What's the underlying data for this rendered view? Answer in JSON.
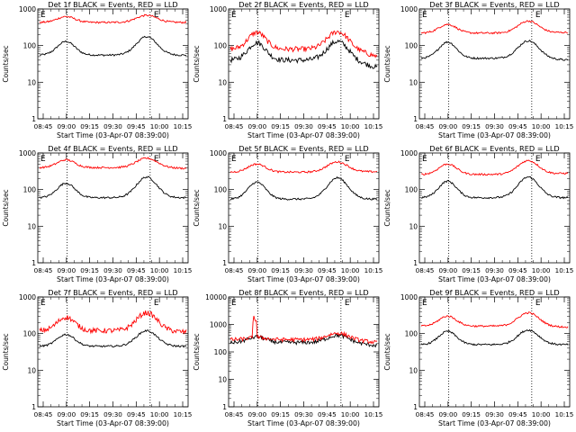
{
  "figure": {
    "xlabel": "Start Time (03-Apr-07 08:39:00)",
    "ylabel": "Counts/sec",
    "x_ticks": [
      "08:45",
      "09:00",
      "09:15",
      "09:30",
      "09:45",
      "10:00",
      "10:15"
    ],
    "marker_label": "E",
    "colors": {
      "events": "#000000",
      "lld": "#ff0000",
      "axis": "#000000"
    }
  },
  "chart_data": [
    {
      "type": "line",
      "title": "Det 1f BLACK = Events, RED = LLD",
      "ylim": [
        1,
        1000
      ],
      "yscale": "log",
      "yticks": [
        "1",
        "10",
        "100",
        "1000"
      ],
      "series": [
        {
          "name": "BLACK = Events",
          "base": 55,
          "peak1": 130,
          "peak2": 175
        },
        {
          "name": "RED = LLD",
          "base": 430,
          "peak1": 620,
          "peak2": 670
        }
      ]
    },
    {
      "type": "line",
      "title": "Det 2f BLACK = Events, RED = LLD",
      "ylim": [
        1,
        1000
      ],
      "yscale": "log",
      "yticks": [
        "1",
        "10",
        "100",
        "1000"
      ],
      "series": [
        {
          "name": "BLACK = Events",
          "base": 40,
          "peak1": 120,
          "peak2": 130,
          "end": 25
        },
        {
          "name": "RED = LLD",
          "base": 80,
          "peak1": 230,
          "peak2": 240,
          "end": 50
        }
      ]
    },
    {
      "type": "line",
      "title": "Det 3f BLACK = Events, RED = LLD",
      "ylim": [
        1,
        1000
      ],
      "yscale": "log",
      "yticks": [
        "1",
        "10",
        "100",
        "1000"
      ],
      "series": [
        {
          "name": "BLACK = Events",
          "base": 45,
          "peak1": 125,
          "peak2": 135,
          "end": 40
        },
        {
          "name": "RED = LLD",
          "base": 220,
          "peak1": 380,
          "peak2": 470,
          "end": 230
        }
      ]
    },
    {
      "type": "line",
      "title": "Det 4f BLACK = Events, RED = LLD",
      "ylim": [
        1,
        1000
      ],
      "yscale": "log",
      "yticks": [
        "1",
        "10",
        "100",
        "1000"
      ],
      "series": [
        {
          "name": "BLACK = Events",
          "base": 60,
          "peak1": 150,
          "peak2": 220,
          "end": 60
        },
        {
          "name": "RED = LLD",
          "base": 400,
          "peak1": 650,
          "peak2": 720,
          "end": 380
        }
      ]
    },
    {
      "type": "line",
      "title": "Det 5f BLACK = Events, RED = LLD",
      "ylim": [
        1,
        1000
      ],
      "yscale": "log",
      "yticks": [
        "1",
        "10",
        "100",
        "1000"
      ],
      "series": [
        {
          "name": "BLACK = Events",
          "base": 55,
          "peak1": 160,
          "peak2": 210,
          "end": 55
        },
        {
          "name": "RED = LLD",
          "base": 300,
          "peak1": 500,
          "peak2": 570,
          "end": 310
        }
      ]
    },
    {
      "type": "line",
      "title": "Det 6f BLACK = Events, RED = LLD",
      "ylim": [
        1,
        1000
      ],
      "yscale": "log",
      "yticks": [
        "1",
        "10",
        "100",
        "1000"
      ],
      "series": [
        {
          "name": "BLACK = Events",
          "base": 60,
          "peak1": 170,
          "peak2": 220,
          "end": 60
        },
        {
          "name": "RED = LLD",
          "base": 260,
          "peak1": 500,
          "peak2": 620,
          "end": 280
        }
      ]
    },
    {
      "type": "line",
      "title": "Det 7f BLACK = Events, RED = LLD",
      "ylim": [
        1,
        1000
      ],
      "yscale": "log",
      "yticks": [
        "1",
        "10",
        "100",
        "1000"
      ],
      "series": [
        {
          "name": "BLACK = Events",
          "base": 45,
          "peak1": 95,
          "peak2": 120,
          "end": 45
        },
        {
          "name": "RED = LLD",
          "base": 120,
          "peak1": 280,
          "peak2": 370,
          "end": 110
        }
      ]
    },
    {
      "type": "line",
      "title": "Det 8f BLACK = Events, RED = LLD",
      "ylim": [
        1,
        10000
      ],
      "yscale": "log",
      "yticks": [
        "1",
        "10",
        "100",
        "1000",
        "10000"
      ],
      "series": [
        {
          "name": "BLACK = Events",
          "base": 220,
          "peak1": 350,
          "peak2": 400,
          "end": 170
        },
        {
          "name": "RED = LLD",
          "base": 280,
          "peak1": 1800,
          "peak2": 480,
          "end": 220
        }
      ]
    },
    {
      "type": "line",
      "title": "Det 9f BLACK = Events, RED = LLD",
      "ylim": [
        1,
        1000
      ],
      "yscale": "log",
      "yticks": [
        "1",
        "10",
        "100",
        "1000"
      ],
      "series": [
        {
          "name": "BLACK = Events",
          "base": 50,
          "peak1": 115,
          "peak2": 125,
          "end": 50
        },
        {
          "name": "RED = LLD",
          "base": 160,
          "peak1": 300,
          "peak2": 370,
          "end": 150
        }
      ]
    }
  ]
}
